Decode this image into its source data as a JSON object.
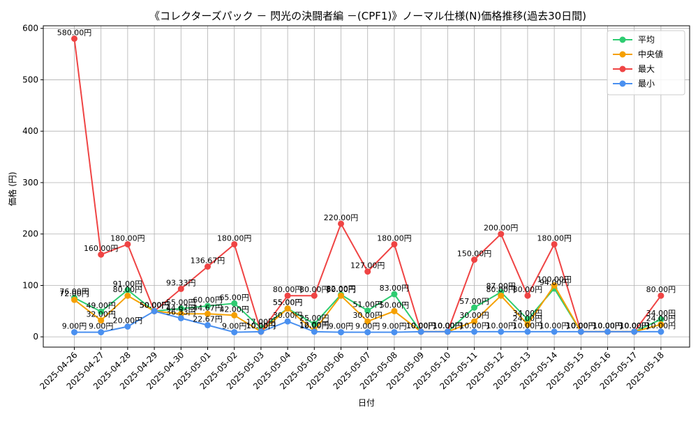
{
  "chart_data": {
    "type": "line",
    "title": "《コレクターズパック － 閃光の決闘者編 －(CPF1)》ノーマル仕様(N)価格推移(過去30日間)",
    "xlabel": "日付",
    "ylabel": "価格 (円)",
    "ylim": [
      -20,
      605
    ],
    "yticks": [
      0,
      100,
      200,
      300,
      400,
      500,
      600
    ],
    "grid": true,
    "legend_position": "top-right",
    "label_suffix": "円",
    "categories": [
      "2025-04-26",
      "2025-04-27",
      "2025-04-28",
      "2025-04-29",
      "2025-04-30",
      "2025-05-01",
      "2025-05-02",
      "2025-05-03",
      "2025-05-04",
      "2025-05-05",
      "2025-05-06",
      "2025-05-07",
      "2025-05-08",
      "2025-05-09",
      "2025-05-10",
      "2025-05-11",
      "2025-05-12",
      "2025-05-13",
      "2025-05-14",
      "2025-05-15",
      "2025-05-16",
      "2025-05-17",
      "2025-05-18"
    ],
    "series": [
      {
        "name": "平均",
        "color": "#2ecc71",
        "values": [
          76.0,
          49.0,
          91.0,
          50.0,
          55.0,
          60.0,
          65.0,
          17.0,
          55.0,
          25.0,
          82.0,
          51.0,
          83.0,
          10.0,
          10.0,
          57.0,
          87.0,
          34.0,
          94.0,
          10.0,
          10.0,
          10.0,
          34.0
        ]
      },
      {
        "name": "中央値",
        "color": "#f5a000",
        "values": [
          72.0,
          32.0,
          80.0,
          50.0,
          44.67,
          44.67,
          42.0,
          10.0,
          55.0,
          12.0,
          80.0,
          30.0,
          50.0,
          10.0,
          10.0,
          30.0,
          80.0,
          24.0,
          100.0,
          10.0,
          10.0,
          10.0,
          24.0
        ]
      },
      {
        "name": "最大",
        "color": "#ef4444",
        "values": [
          580.0,
          160.0,
          180.0,
          50.0,
          93.33,
          136.67,
          180.0,
          10.0,
          80.0,
          80.0,
          220.0,
          127.0,
          180.0,
          10.0,
          10.0,
          150.0,
          200.0,
          80.0,
          180.0,
          10.0,
          10.0,
          10.0,
          80.0
        ]
      },
      {
        "name": "最小",
        "color": "#4a90f0",
        "values": [
          9.0,
          9.0,
          20.0,
          50.0,
          36.33,
          22.67,
          9.0,
          10.0,
          30.0,
          10.0,
          9.0,
          9.0,
          9.0,
          10.0,
          10.0,
          10.0,
          10.0,
          10.0,
          10.0,
          10.0,
          10.0,
          10.0,
          10.0
        ]
      }
    ]
  }
}
